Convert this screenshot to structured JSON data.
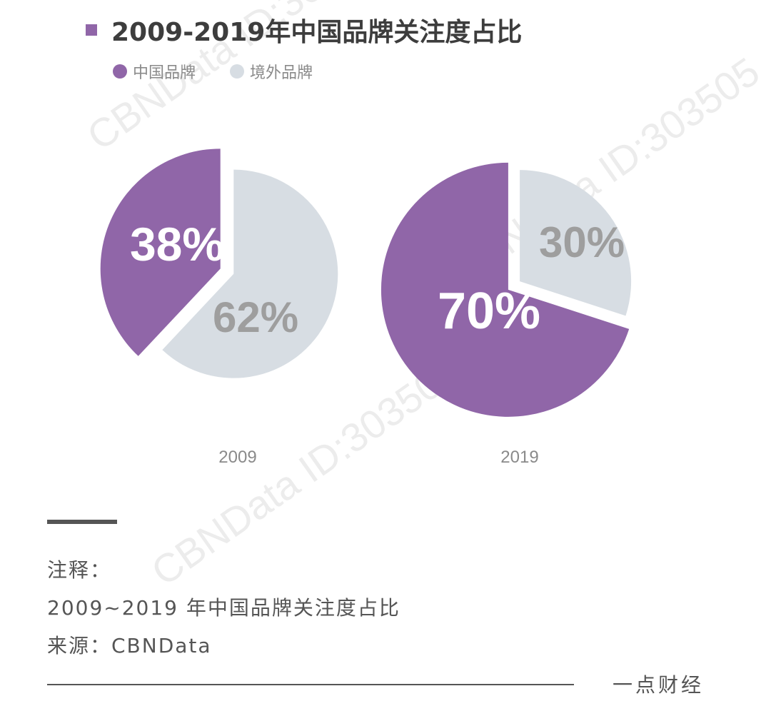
{
  "chart_data": [
    {
      "type": "pie",
      "title": "2009-2019年中国品牌关注度占比",
      "x_label": "2009",
      "series_names": [
        "中国品牌",
        "境外品牌"
      ],
      "values": [
        38,
        62
      ],
      "labels": [
        "38%",
        "62%"
      ],
      "colors": [
        "#9066a8",
        "#d7dde3"
      ]
    },
    {
      "type": "pie",
      "title": "2009-2019年中国品牌关注度占比",
      "x_label": "2019",
      "series_names": [
        "中国品牌",
        "境外品牌"
      ],
      "values": [
        70,
        30
      ],
      "labels": [
        "70%",
        "30%"
      ],
      "colors": [
        "#9066a8",
        "#d7dde3"
      ]
    }
  ],
  "header": {
    "title": "2009-2019年中国品牌关注度占比"
  },
  "legend": {
    "items": [
      {
        "label": "中国品牌",
        "color": "#9066a8"
      },
      {
        "label": "境外品牌",
        "color": "#d7dde3"
      }
    ]
  },
  "watermark": {
    "text": "CBNData ID:303505"
  },
  "notes": {
    "heading": "注释：",
    "line1": "2009~2019 年中国品牌关注度占比",
    "line2": "来源：CBNData"
  },
  "brand": {
    "name": "一点财经"
  }
}
